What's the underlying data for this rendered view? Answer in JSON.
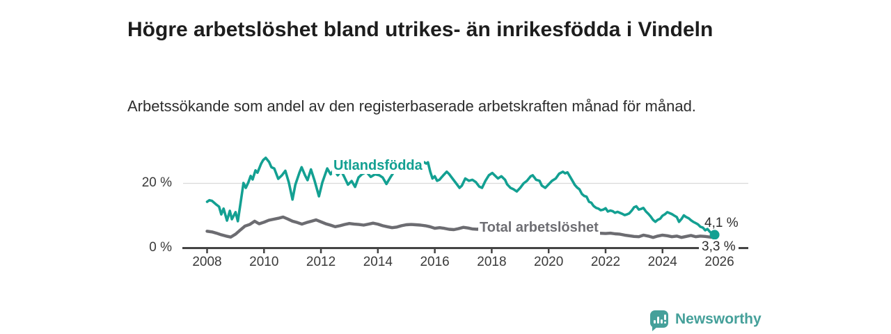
{
  "chart_data": {
    "type": "line",
    "title": "Högre arbetslöshet bland utrikes- än inrikesfödda i Vindeln",
    "subtitle": "Arbetssökande som andel av den registerbaserade arbetskraften månad för månad.",
    "grid": "horizontal-20-only",
    "legend_position": "inline-labels-on-lines",
    "x_axis": {
      "ticks": [
        2008,
        2010,
        2012,
        2014,
        2016,
        2018,
        2020,
        2022,
        2024,
        2026
      ],
      "range": [
        2007.1,
        2027.0
      ]
    },
    "y_axis": {
      "ticks": [
        {
          "value": 0,
          "label": "0 %"
        },
        {
          "value": 20,
          "label": "20 %"
        }
      ],
      "range": [
        0,
        30
      ],
      "gridline_at": 20
    },
    "series": [
      {
        "id": "utlandsfodda",
        "name": "Utlandsfödda",
        "color": "#13a092",
        "width": 3.6,
        "end_label": "4,1 %",
        "end_value": 4.1,
        "end_marker": true,
        "points": [
          [
            2008.0,
            14.3
          ],
          [
            2008.08,
            14.8
          ],
          [
            2008.17,
            14.6
          ],
          [
            2008.25,
            14.0
          ],
          [
            2008.33,
            13.4
          ],
          [
            2008.42,
            12.8
          ],
          [
            2008.5,
            10.4
          ],
          [
            2008.58,
            12.2
          ],
          [
            2008.7,
            8.5
          ],
          [
            2008.8,
            11.5
          ],
          [
            2008.87,
            8.9
          ],
          [
            2009.0,
            11.1
          ],
          [
            2009.08,
            8.3
          ],
          [
            2009.17,
            13.5
          ],
          [
            2009.28,
            20.1
          ],
          [
            2009.36,
            18.6
          ],
          [
            2009.45,
            20.3
          ],
          [
            2009.53,
            22.3
          ],
          [
            2009.6,
            21.2
          ],
          [
            2009.7,
            24.0
          ],
          [
            2009.77,
            23.3
          ],
          [
            2009.9,
            26.1
          ],
          [
            2009.97,
            27.2
          ],
          [
            2010.06,
            27.9
          ],
          [
            2010.18,
            26.6
          ],
          [
            2010.26,
            25.0
          ],
          [
            2010.36,
            24.6
          ],
          [
            2010.5,
            21.4
          ],
          [
            2010.63,
            22.5
          ],
          [
            2010.75,
            23.9
          ],
          [
            2010.87,
            20.3
          ],
          [
            2011.0,
            15.0
          ],
          [
            2011.1,
            19.6
          ],
          [
            2011.24,
            23.2
          ],
          [
            2011.32,
            25.0
          ],
          [
            2011.44,
            22.5
          ],
          [
            2011.53,
            21.0
          ],
          [
            2011.65,
            24.3
          ],
          [
            2011.77,
            21.0
          ],
          [
            2011.93,
            16.0
          ],
          [
            2012.05,
            20.3
          ],
          [
            2012.22,
            24.6
          ],
          [
            2012.34,
            22.8
          ],
          [
            2012.46,
            24.3
          ],
          [
            2012.59,
            22.5
          ],
          [
            2012.71,
            23.9
          ],
          [
            2012.83,
            21.8
          ],
          [
            2012.95,
            19.6
          ],
          [
            2013.08,
            20.7
          ],
          [
            2013.2,
            18.9
          ],
          [
            2013.32,
            21.8
          ],
          [
            2013.44,
            22.8
          ],
          [
            2013.6,
            23.5
          ],
          [
            2013.75,
            22.0
          ],
          [
            2013.9,
            22.8
          ],
          [
            2014.05,
            22.5
          ],
          [
            2014.17,
            21.8
          ],
          [
            2014.3,
            19.8
          ],
          [
            2014.45,
            22.0
          ],
          [
            2014.6,
            24.0
          ],
          [
            2014.8,
            25.1
          ],
          [
            2014.95,
            24.3
          ],
          [
            2015.05,
            25.4
          ],
          [
            2015.2,
            27.2
          ],
          [
            2015.3,
            26.5
          ],
          [
            2015.45,
            27.2
          ],
          [
            2015.57,
            26.8
          ],
          [
            2015.7,
            26.1
          ],
          [
            2015.76,
            26.5
          ],
          [
            2015.84,
            23.6
          ],
          [
            2015.92,
            21.5
          ],
          [
            2016.0,
            22.2
          ],
          [
            2016.08,
            20.8
          ],
          [
            2016.16,
            21.1
          ],
          [
            2016.3,
            22.5
          ],
          [
            2016.42,
            23.6
          ],
          [
            2016.5,
            22.9
          ],
          [
            2016.62,
            21.5
          ],
          [
            2016.75,
            20.0
          ],
          [
            2016.87,
            18.6
          ],
          [
            2016.95,
            19.3
          ],
          [
            2017.07,
            21.5
          ],
          [
            2017.2,
            20.8
          ],
          [
            2017.32,
            21.1
          ],
          [
            2017.44,
            20.4
          ],
          [
            2017.56,
            19.0
          ],
          [
            2017.66,
            18.6
          ],
          [
            2017.78,
            20.8
          ],
          [
            2017.9,
            22.5
          ],
          [
            2018.02,
            23.2
          ],
          [
            2018.14,
            22.2
          ],
          [
            2018.22,
            21.5
          ],
          [
            2018.34,
            22.2
          ],
          [
            2018.47,
            21.1
          ],
          [
            2018.54,
            19.7
          ],
          [
            2018.66,
            18.6
          ],
          [
            2018.76,
            18.2
          ],
          [
            2018.88,
            17.5
          ],
          [
            2019.0,
            18.6
          ],
          [
            2019.12,
            20.0
          ],
          [
            2019.24,
            20.8
          ],
          [
            2019.37,
            22.2
          ],
          [
            2019.44,
            22.5
          ],
          [
            2019.56,
            21.1
          ],
          [
            2019.68,
            20.8
          ],
          [
            2019.76,
            19.3
          ],
          [
            2019.88,
            18.6
          ],
          [
            2020.0,
            19.7
          ],
          [
            2020.12,
            20.8
          ],
          [
            2020.25,
            21.5
          ],
          [
            2020.37,
            23.0
          ],
          [
            2020.5,
            23.6
          ],
          [
            2020.58,
            23.1
          ],
          [
            2020.66,
            23.4
          ],
          [
            2020.75,
            22.1
          ],
          [
            2020.83,
            20.9
          ],
          [
            2020.92,
            19.5
          ],
          [
            2021.0,
            18.7
          ],
          [
            2021.08,
            18.2
          ],
          [
            2021.17,
            16.7
          ],
          [
            2021.25,
            16.1
          ],
          [
            2021.33,
            15.9
          ],
          [
            2021.42,
            14.3
          ],
          [
            2021.5,
            14.0
          ],
          [
            2021.58,
            13.0
          ],
          [
            2021.67,
            12.4
          ],
          [
            2021.75,
            12.2
          ],
          [
            2021.83,
            11.7
          ],
          [
            2021.92,
            11.9
          ],
          [
            2022.0,
            12.3
          ],
          [
            2022.08,
            11.3
          ],
          [
            2022.17,
            11.6
          ],
          [
            2022.25,
            11.4
          ],
          [
            2022.33,
            10.9
          ],
          [
            2022.42,
            11.2
          ],
          [
            2022.5,
            10.9
          ],
          [
            2022.58,
            10.6
          ],
          [
            2022.67,
            10.2
          ],
          [
            2022.75,
            10.4
          ],
          [
            2022.83,
            10.7
          ],
          [
            2022.92,
            11.6
          ],
          [
            2023.0,
            12.6
          ],
          [
            2023.08,
            12.9
          ],
          [
            2023.17,
            11.9
          ],
          [
            2023.25,
            12.1
          ],
          [
            2023.33,
            12.4
          ],
          [
            2023.42,
            11.3
          ],
          [
            2023.5,
            10.6
          ],
          [
            2023.58,
            9.8
          ],
          [
            2023.67,
            8.7
          ],
          [
            2023.75,
            8.1
          ],
          [
            2023.83,
            8.7
          ],
          [
            2023.92,
            9.1
          ],
          [
            2024.0,
            10.0
          ],
          [
            2024.08,
            10.4
          ],
          [
            2024.17,
            11.1
          ],
          [
            2024.25,
            10.8
          ],
          [
            2024.33,
            10.5
          ],
          [
            2024.42,
            10.0
          ],
          [
            2024.5,
            9.6
          ],
          [
            2024.58,
            8.1
          ],
          [
            2024.67,
            9.0
          ],
          [
            2024.75,
            10.1
          ],
          [
            2024.83,
            9.6
          ],
          [
            2024.92,
            9.2
          ],
          [
            2025.0,
            8.6
          ],
          [
            2025.08,
            8.1
          ],
          [
            2025.17,
            7.7
          ],
          [
            2025.25,
            7.3
          ],
          [
            2025.33,
            6.6
          ],
          [
            2025.42,
            6.3
          ],
          [
            2025.5,
            5.5
          ],
          [
            2025.58,
            5.9
          ],
          [
            2025.67,
            5.0
          ],
          [
            2025.75,
            4.5
          ],
          [
            2025.83,
            4.1
          ]
        ]
      },
      {
        "id": "total",
        "name": "Total arbetslöshet",
        "color": "#6c6c71",
        "width": 4.4,
        "end_label": "3,3 %",
        "end_value": 3.3,
        "end_marker": false,
        "points": [
          [
            2008.0,
            5.2
          ],
          [
            2008.17,
            5.0
          ],
          [
            2008.33,
            4.6
          ],
          [
            2008.5,
            4.1
          ],
          [
            2008.67,
            3.7
          ],
          [
            2008.83,
            3.4
          ],
          [
            2009.0,
            4.3
          ],
          [
            2009.17,
            5.6
          ],
          [
            2009.33,
            6.8
          ],
          [
            2009.5,
            7.3
          ],
          [
            2009.67,
            8.3
          ],
          [
            2009.83,
            7.5
          ],
          [
            2010.0,
            8.0
          ],
          [
            2010.17,
            8.6
          ],
          [
            2010.33,
            8.9
          ],
          [
            2010.5,
            9.2
          ],
          [
            2010.67,
            9.6
          ],
          [
            2010.83,
            9.0
          ],
          [
            2011.0,
            8.3
          ],
          [
            2011.17,
            7.9
          ],
          [
            2011.33,
            7.4
          ],
          [
            2011.5,
            7.9
          ],
          [
            2011.67,
            8.3
          ],
          [
            2011.83,
            8.7
          ],
          [
            2012.0,
            8.1
          ],
          [
            2012.17,
            7.5
          ],
          [
            2012.33,
            7.1
          ],
          [
            2012.5,
            6.6
          ],
          [
            2012.67,
            6.9
          ],
          [
            2012.83,
            7.3
          ],
          [
            2013.0,
            7.6
          ],
          [
            2013.17,
            7.4
          ],
          [
            2013.33,
            7.3
          ],
          [
            2013.5,
            7.1
          ],
          [
            2013.67,
            7.4
          ],
          [
            2013.83,
            7.7
          ],
          [
            2014.0,
            7.4
          ],
          [
            2014.17,
            6.9
          ],
          [
            2014.33,
            6.6
          ],
          [
            2014.5,
            6.3
          ],
          [
            2014.67,
            6.5
          ],
          [
            2014.83,
            6.9
          ],
          [
            2015.0,
            7.2
          ],
          [
            2015.17,
            7.3
          ],
          [
            2015.33,
            7.2
          ],
          [
            2015.5,
            7.1
          ],
          [
            2015.67,
            6.9
          ],
          [
            2015.83,
            6.6
          ],
          [
            2016.0,
            6.1
          ],
          [
            2016.17,
            6.3
          ],
          [
            2016.33,
            6.1
          ],
          [
            2016.5,
            5.8
          ],
          [
            2016.67,
            5.7
          ],
          [
            2016.83,
            6.0
          ],
          [
            2017.0,
            6.4
          ],
          [
            2017.17,
            6.2
          ],
          [
            2017.33,
            5.9
          ],
          [
            2017.5,
            5.8
          ],
          [
            2017.67,
            6.3
          ],
          [
            2017.83,
            6.1
          ],
          [
            2018.0,
            5.9
          ],
          [
            2018.25,
            5.7
          ],
          [
            2018.5,
            5.5
          ],
          [
            2018.75,
            5.3
          ],
          [
            2019.0,
            5.2
          ],
          [
            2019.25,
            5.0
          ],
          [
            2019.5,
            4.9
          ],
          [
            2019.75,
            5.0
          ],
          [
            2020.0,
            5.2
          ],
          [
            2020.25,
            5.6
          ],
          [
            2020.5,
            5.8
          ],
          [
            2020.75,
            5.6
          ],
          [
            2021.0,
            5.3
          ],
          [
            2021.25,
            5.0
          ],
          [
            2021.5,
            4.8
          ],
          [
            2021.75,
            4.6
          ],
          [
            2022.0,
            4.5
          ],
          [
            2022.17,
            4.6
          ],
          [
            2022.33,
            4.4
          ],
          [
            2022.5,
            4.3
          ],
          [
            2022.67,
            4.0
          ],
          [
            2022.83,
            3.8
          ],
          [
            2023.0,
            3.6
          ],
          [
            2023.17,
            3.5
          ],
          [
            2023.33,
            4.0
          ],
          [
            2023.5,
            3.7
          ],
          [
            2023.67,
            3.3
          ],
          [
            2023.83,
            3.7
          ],
          [
            2024.0,
            4.0
          ],
          [
            2024.17,
            3.8
          ],
          [
            2024.33,
            3.5
          ],
          [
            2024.5,
            3.7
          ],
          [
            2024.67,
            3.3
          ],
          [
            2024.83,
            3.6
          ],
          [
            2025.0,
            3.9
          ],
          [
            2025.17,
            3.5
          ],
          [
            2025.33,
            3.7
          ],
          [
            2025.5,
            3.6
          ],
          [
            2025.67,
            3.4
          ],
          [
            2025.83,
            3.3
          ]
        ]
      }
    ]
  },
  "footer": {
    "brand": "Newsworthy"
  },
  "colors": {
    "line_teal": "#13a092",
    "line_gray": "#6c6c71",
    "axis": "#444444",
    "gridline": "#d9d9d9",
    "title_text": "#1d1d1d",
    "body_text": "#2d2d2d",
    "tick_text": "#3a3a3a",
    "annotation_text": "#2b2b2b",
    "brand_teal": "#45a09a"
  }
}
